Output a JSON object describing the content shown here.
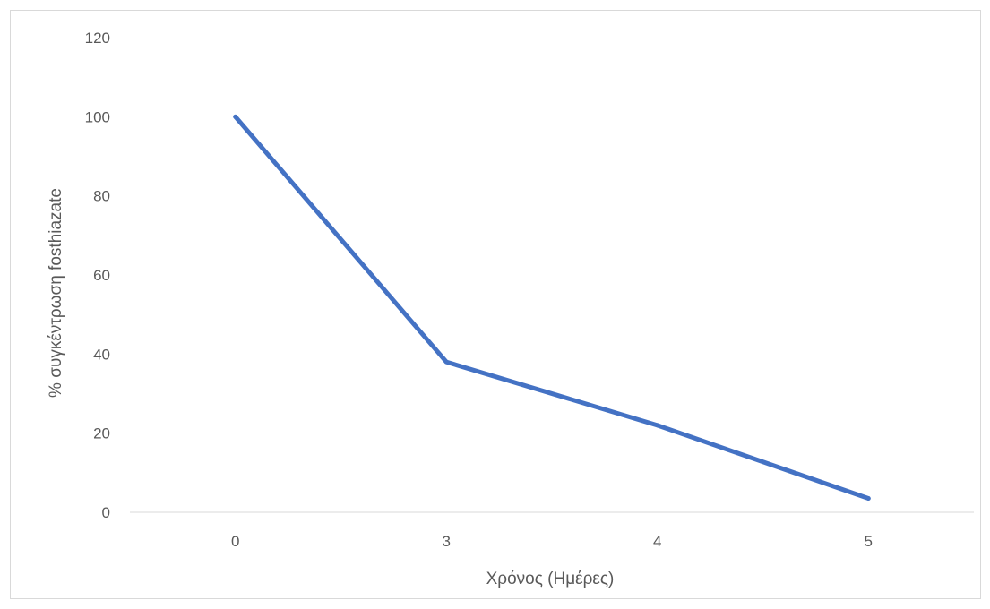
{
  "chart_data": {
    "type": "line",
    "title": "",
    "categories": [
      "0",
      "3",
      "4",
      "5"
    ],
    "series": [
      {
        "values": [
          100,
          38,
          22,
          3.5
        ],
        "color": "#4472C4"
      }
    ],
    "xlabel": "Χρόνος (Ημέρες)",
    "ylabel": "% συγκέντρωση fosthiazate",
    "ylim": [
      0,
      120
    ],
    "yticks": [
      "0",
      "20",
      "40",
      "60",
      "80",
      "100",
      "120"
    ],
    "grid": false,
    "legend": "none"
  }
}
